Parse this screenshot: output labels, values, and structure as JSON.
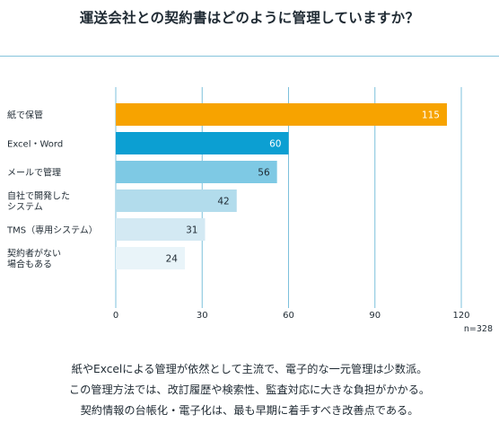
{
  "title": "運送会社との契約書はどのように管理していますか？",
  "chart_data": {
    "type": "bar",
    "orientation": "horizontal",
    "categories": [
      "紙で保管",
      "Excel・Word",
      "メールで管理",
      "自社で開発した\nシステム",
      "TMS（専用システム）",
      "契約者がない\n場合もある"
    ],
    "values": [
      115,
      60,
      56,
      42,
      31,
      24
    ],
    "bar_colors": [
      "#f7a300",
      "#0c9fd2",
      "#7ec9e4",
      "#b2dcec",
      "#d3e9f3",
      "#e9f4f9"
    ],
    "value_label_colors": [
      "#ffffff",
      "#ffffff",
      "#1f2a33",
      "#1f2a33",
      "#1f2a33",
      "#1f2a33"
    ],
    "xticks": [
      0,
      30,
      60,
      90,
      120
    ],
    "xlim": [
      0,
      120
    ],
    "grid": true,
    "grid_color": "#7cc0dc",
    "note": "n=328"
  },
  "caption": [
    "紙やExcelによる管理が依然として主流で、電子的な一元管理は少数派。",
    "この管理方法では、改訂履歴や検索性、監査対応に大きな負担がかかる。",
    "契約情報の台帳化・電子化は、最も早期に着手すべき改善点である。"
  ]
}
